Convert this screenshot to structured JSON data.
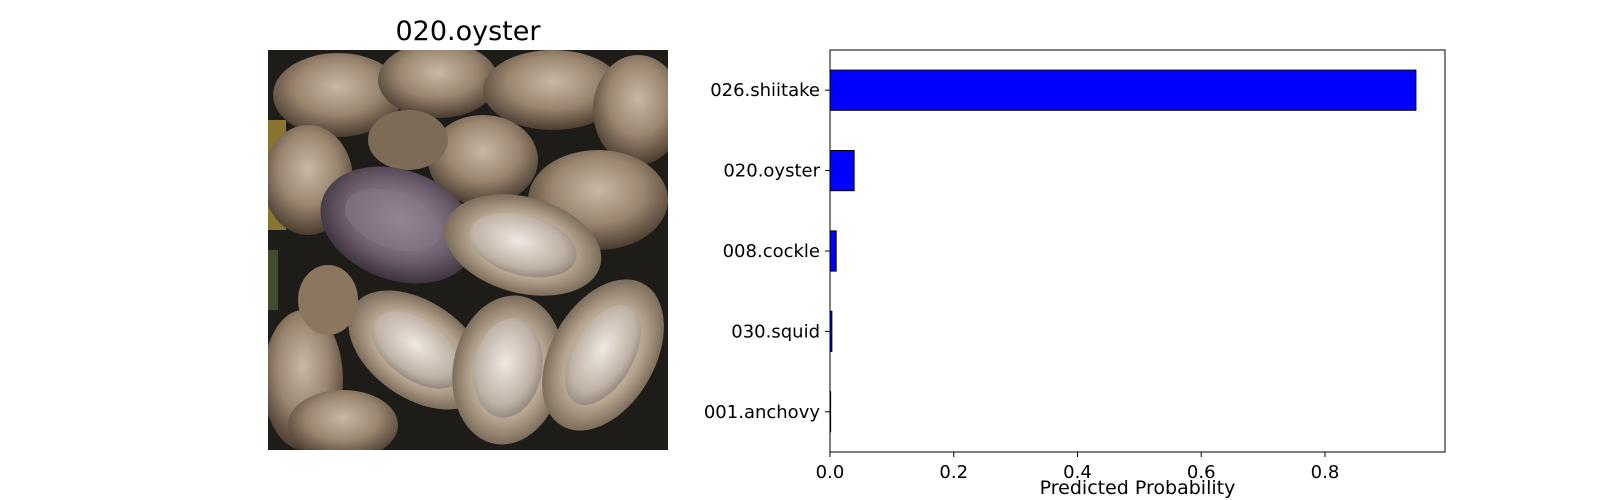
{
  "image_panel": {
    "title": "020.oyster",
    "subject": "photo of oysters on the half shell"
  },
  "chart_data": {
    "type": "bar",
    "orientation": "horizontal",
    "title": "",
    "xlabel": "Predicted Probability",
    "ylabel": "",
    "categories": [
      "026.shiitake",
      "020.oyster",
      "008.cockle",
      "030.squid",
      "001.anchovy"
    ],
    "values": [
      0.947,
      0.039,
      0.01,
      0.003,
      0.001
    ],
    "xlim": [
      0,
      0.994
    ],
    "xticks": [
      0.0,
      0.2,
      0.4,
      0.6,
      0.8
    ],
    "xtick_labels": [
      "0.0",
      "0.2",
      "0.4",
      "0.6",
      "0.8"
    ],
    "bar_color": "#0000ff",
    "edge_color": "#000000",
    "grid": false,
    "legend": false
  }
}
